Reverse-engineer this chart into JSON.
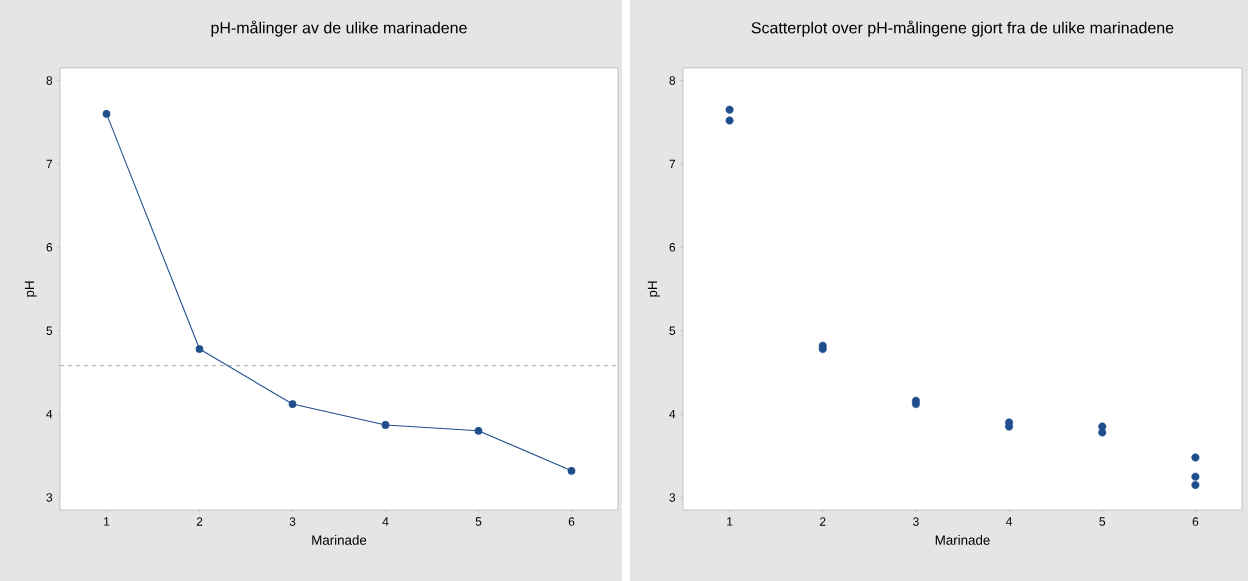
{
  "chart_data": [
    {
      "type": "line",
      "title": "pH-målinger av de ulike marinadene",
      "xlabel": "Marinade",
      "ylabel": "pH",
      "x": [
        1,
        2,
        3,
        4,
        5,
        6
      ],
      "series": [
        {
          "color": "#1f4e8c",
          "values": [
            7.6,
            4.78,
            4.12,
            3.87,
            3.8,
            3.32
          ]
        }
      ],
      "marker": "circle",
      "line_style": "solid",
      "xlim": [
        0.5,
        6.5
      ],
      "ylim": [
        2.85,
        8.15
      ],
      "xticks": [
        1,
        2,
        3,
        4,
        5,
        6
      ],
      "yticks": [
        3,
        4,
        5,
        6,
        7,
        8
      ],
      "ref_lines": [
        {
          "axis": "y",
          "value": 4.58,
          "color": "#a0a0a0",
          "line_style": "dashed"
        }
      ]
    },
    {
      "type": "scatter",
      "title": "Scatterplot over pH-målingene gjort fra de ulike marinadene",
      "xlabel": "Marinade",
      "ylabel": "pH",
      "x": [
        1,
        1,
        2,
        2,
        3,
        3,
        4,
        4,
        5,
        5,
        6,
        6,
        6
      ],
      "series": [
        {
          "color": "#1f4e8c",
          "values": [
            7.65,
            7.52,
            4.82,
            4.78,
            4.16,
            4.12,
            3.9,
            3.85,
            3.85,
            3.78,
            3.48,
            3.25,
            3.15
          ]
        }
      ],
      "marker": "circle",
      "xlim": [
        0.5,
        6.5
      ],
      "ylim": [
        2.85,
        8.15
      ],
      "xticks": [
        1,
        2,
        3,
        4,
        5,
        6
      ],
      "yticks": [
        3,
        4,
        5,
        6,
        7,
        8
      ]
    }
  ]
}
